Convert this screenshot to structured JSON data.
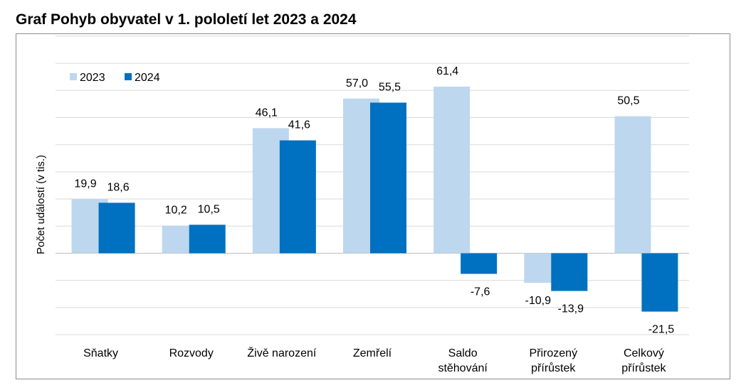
{
  "chart_data": {
    "type": "bar",
    "title": "Graf Pohyb obyvatel v 1. pololetí let 2023 a 2024",
    "ylabel": "Počet událostí  (v tis.)",
    "xlabel": "",
    "ylim": [
      -30,
      80
    ],
    "grid": true,
    "legend_position": "top-left",
    "categories": [
      [
        "Sňatky"
      ],
      [
        "Rozvody"
      ],
      [
        "Živě narození"
      ],
      [
        "Zemřelí"
      ],
      [
        "Saldo",
        "stěhování"
      ],
      [
        "Přirozený",
        "přírůstek"
      ],
      [
        "Celkový",
        "přírůstek"
      ]
    ],
    "series": [
      {
        "name": "2023",
        "color": "#bdd7ee",
        "values": [
          19.9,
          10.2,
          46.1,
          57.0,
          61.4,
          -10.9,
          50.5
        ],
        "labels": [
          "19,9",
          "10,2",
          "46,1",
          "57,0",
          "61,4",
          "-10,9",
          "50,5"
        ]
      },
      {
        "name": "2024",
        "color": "#0070c0",
        "values": [
          18.6,
          10.5,
          41.6,
          55.5,
          -7.6,
          -13.9,
          -21.5
        ],
        "labels": [
          "18,6",
          "10,5",
          "41,6",
          "55,5",
          "-7,6",
          "-13,9",
          "-21,5"
        ]
      }
    ]
  }
}
